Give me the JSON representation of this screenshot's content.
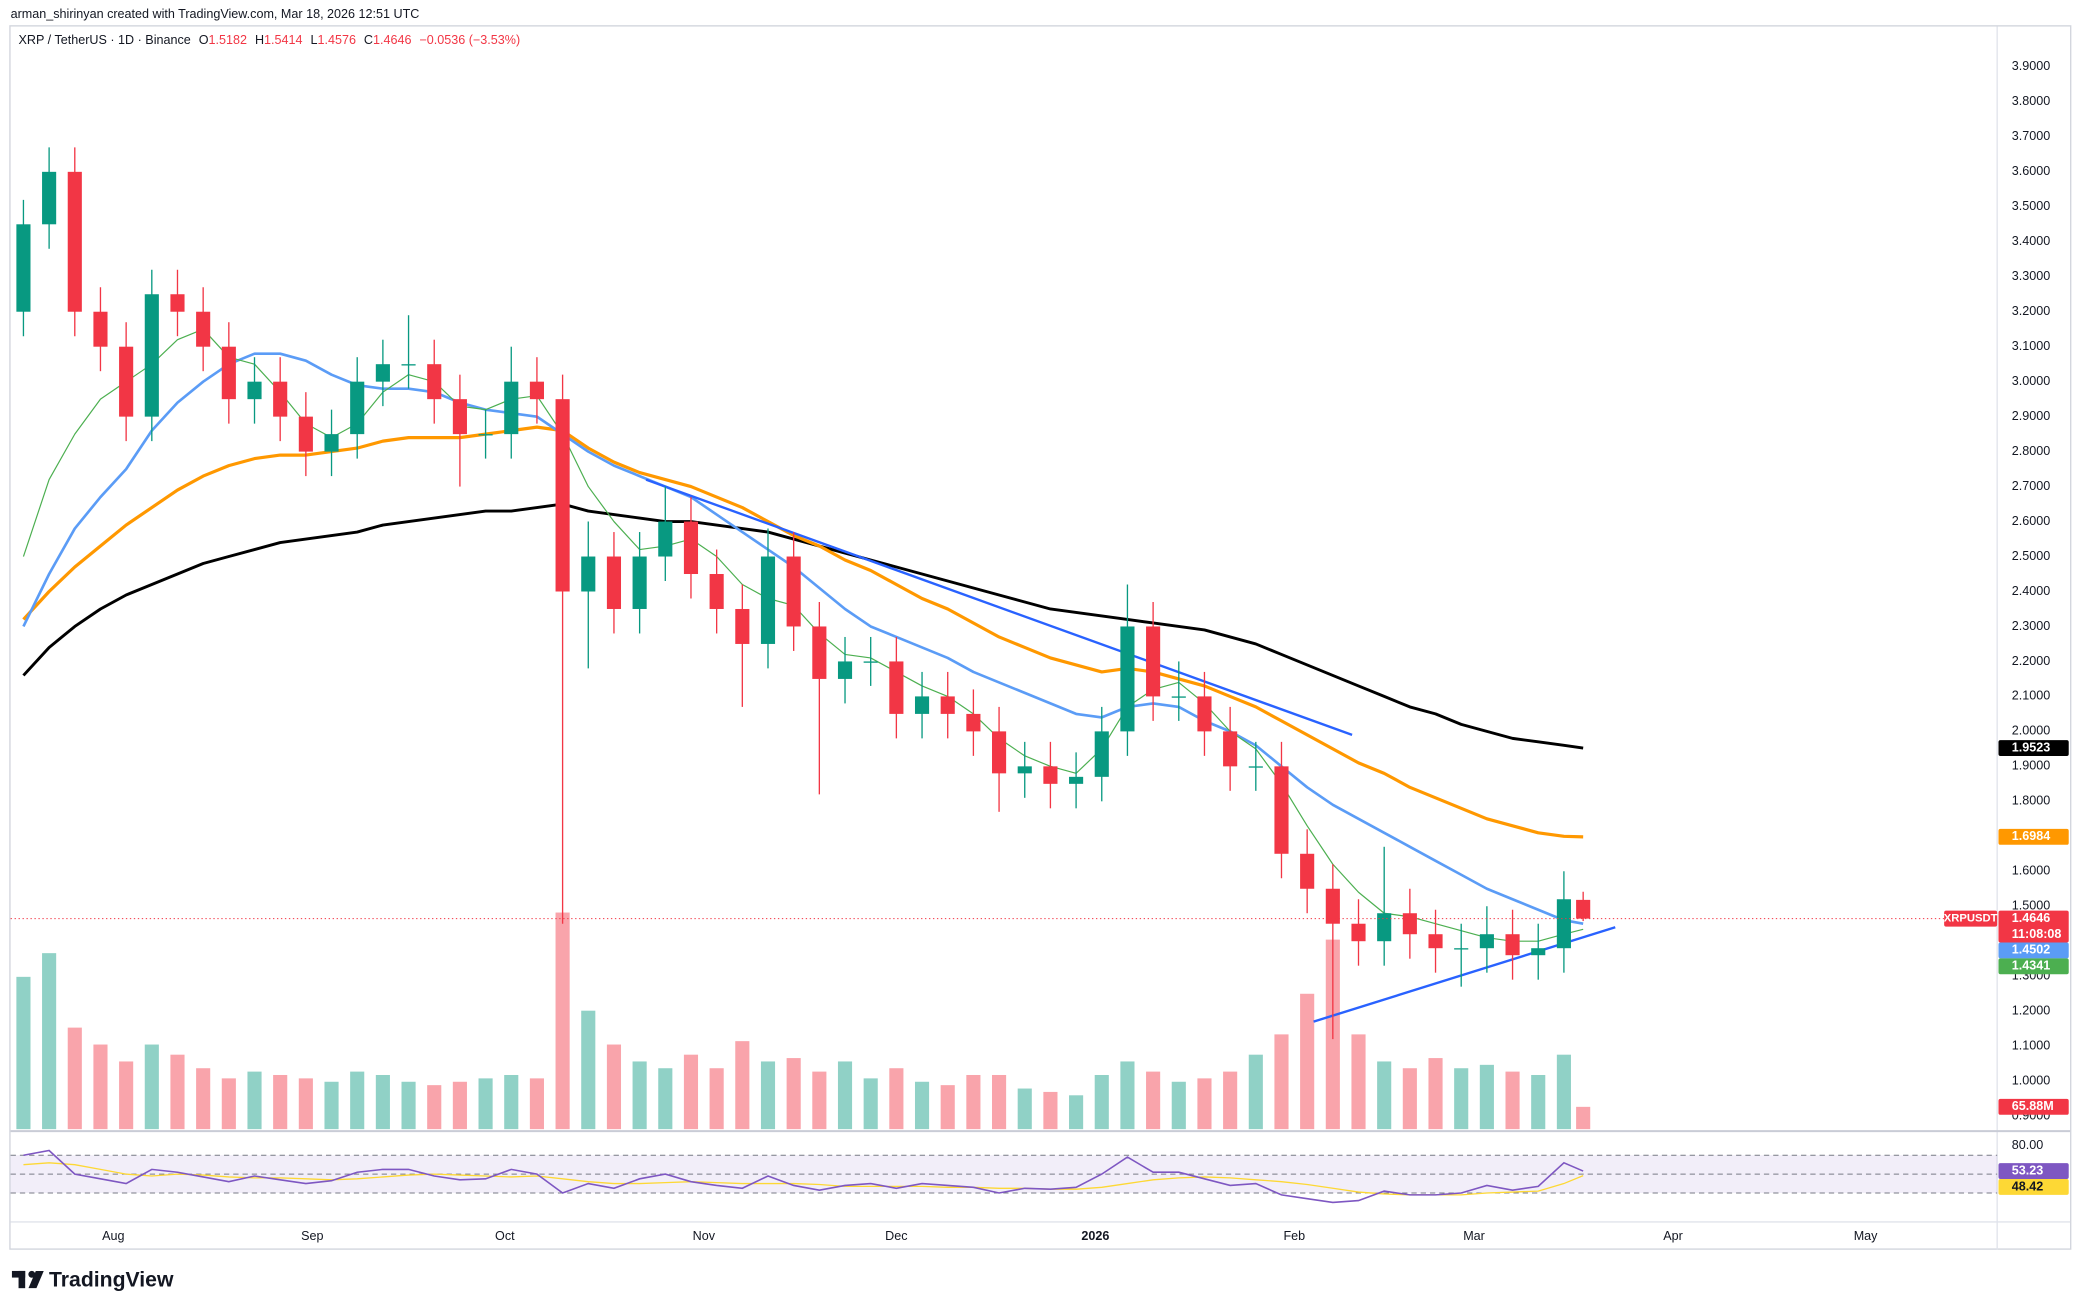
{
  "watermark": "arman_shirinyan created with TradingView.com, Mar 18, 2026 12:51 UTC",
  "footer": {
    "logo": "TradingView"
  },
  "chart_data": {
    "type": "candlestick",
    "title": "XRP / TetherUS · 1D · Binance",
    "symbol": "XRPUSDT",
    "countdown": "11:08:08",
    "ohlc_prefixes": {
      "open": "O",
      "high": "H",
      "low": "L",
      "close": "C"
    },
    "change_label": "−0.0536 (−3.53%)",
    "x": [
      0,
      4,
      8,
      12,
      16,
      20,
      24,
      28,
      32,
      36,
      40,
      44,
      48,
      52,
      56,
      60,
      64,
      68,
      72,
      76,
      80,
      84,
      88,
      92,
      96,
      100,
      104,
      108,
      112,
      116,
      120,
      124,
      128,
      132,
      136,
      140,
      144,
      148,
      152,
      156,
      160,
      164,
      168,
      172,
      176,
      180,
      184,
      188,
      192,
      196,
      200,
      204,
      208,
      212,
      216,
      220,
      224,
      228,
      232,
      236,
      240,
      243
    ],
    "open": [
      3.2,
      3.45,
      3.6,
      3.2,
      3.1,
      2.9,
      3.25,
      3.2,
      3.1,
      2.95,
      3.0,
      2.9,
      2.8,
      2.85,
      3.0,
      3.05,
      3.05,
      2.95,
      2.85,
      2.85,
      3.0,
      2.95,
      2.4,
      2.5,
      2.35,
      2.5,
      2.6,
      2.45,
      2.35,
      2.25,
      2.5,
      2.3,
      2.15,
      2.2,
      2.2,
      2.05,
      2.1,
      2.05,
      2.0,
      1.88,
      1.9,
      1.85,
      1.87,
      2.0,
      2.3,
      2.1,
      2.1,
      2.0,
      1.9,
      1.9,
      1.65,
      1.55,
      1.45,
      1.4,
      1.48,
      1.42,
      1.38,
      1.38,
      1.42,
      1.36,
      1.38,
      1.5182
    ],
    "high": [
      3.52,
      3.67,
      3.67,
      3.27,
      3.17,
      3.32,
      3.32,
      3.27,
      3.17,
      3.07,
      3.07,
      2.97,
      2.92,
      3.07,
      3.12,
      3.19,
      3.12,
      3.02,
      2.92,
      3.1,
      3.07,
      3.02,
      2.6,
      2.57,
      2.57,
      2.7,
      2.67,
      2.52,
      2.42,
      2.58,
      2.57,
      2.37,
      2.27,
      2.27,
      2.27,
      2.17,
      2.17,
      2.12,
      2.07,
      1.97,
      1.97,
      1.94,
      2.07,
      2.42,
      2.37,
      2.2,
      2.17,
      2.07,
      1.97,
      1.97,
      1.72,
      1.62,
      1.52,
      1.67,
      1.55,
      1.49,
      1.45,
      1.5,
      1.49,
      1.45,
      1.6,
      1.5414
    ],
    "low": [
      3.13,
      3.38,
      3.13,
      3.03,
      2.83,
      2.83,
      3.13,
      3.03,
      2.88,
      2.88,
      2.83,
      2.73,
      2.73,
      2.78,
      2.93,
      2.98,
      2.88,
      2.7,
      2.78,
      2.78,
      2.88,
      1.45,
      2.18,
      2.28,
      2.28,
      2.43,
      2.38,
      2.28,
      2.07,
      2.18,
      2.23,
      1.82,
      2.08,
      2.13,
      1.98,
      1.98,
      1.98,
      1.93,
      1.77,
      1.81,
      1.78,
      1.78,
      1.8,
      1.93,
      2.03,
      2.03,
      1.93,
      1.83,
      1.83,
      1.58,
      1.48,
      1.12,
      1.33,
      1.33,
      1.35,
      1.31,
      1.27,
      1.31,
      1.29,
      1.29,
      1.31,
      1.4576
    ],
    "close": [
      3.45,
      3.6,
      3.2,
      3.1,
      2.9,
      3.25,
      3.2,
      3.1,
      2.95,
      3.0,
      2.9,
      2.8,
      2.85,
      3.0,
      3.05,
      3.05,
      2.95,
      2.85,
      2.85,
      3.0,
      2.95,
      2.4,
      2.5,
      2.35,
      2.5,
      2.6,
      2.45,
      2.35,
      2.25,
      2.5,
      2.3,
      2.15,
      2.2,
      2.2,
      2.05,
      2.1,
      2.05,
      2.0,
      1.88,
      1.9,
      1.85,
      1.87,
      2.0,
      2.3,
      2.1,
      2.1,
      2.0,
      1.9,
      1.9,
      1.65,
      1.55,
      1.45,
      1.4,
      1.48,
      1.42,
      1.38,
      1.38,
      1.42,
      1.36,
      1.38,
      1.52,
      1.4646
    ],
    "up_color": "#089981",
    "down_color": "#f23645",
    "xlim": [
      -2,
      307.5
    ],
    "xticks": [
      {
        "value": 14,
        "label": "Aug"
      },
      {
        "value": 45,
        "label": "Sep"
      },
      {
        "value": 75,
        "label": "Oct"
      },
      {
        "value": 106,
        "label": "Nov"
      },
      {
        "value": 136,
        "label": "Dec"
      },
      {
        "value": 167,
        "label": "2026"
      },
      {
        "value": 198,
        "label": "Feb"
      },
      {
        "value": 226,
        "label": "Mar"
      },
      {
        "value": 257,
        "label": "Apr"
      },
      {
        "value": 287,
        "label": "May"
      }
    ],
    "ylim": [
      0.8626,
      4.0155
    ],
    "yticks": [
      {
        "value": 0.9,
        "label": "0.9000"
      },
      {
        "value": 1.0,
        "label": "1.0000"
      },
      {
        "value": 1.1,
        "label": "1.1000"
      },
      {
        "value": 1.2,
        "label": "1.2000"
      },
      {
        "value": 1.3,
        "label": "1.3000"
      },
      {
        "value": 1.4,
        "label": "1.4000"
      },
      {
        "value": 1.5,
        "label": "1.5000"
      },
      {
        "value": 1.6,
        "label": "1.6000"
      },
      {
        "value": 1.7,
        "label": "1.7000"
      },
      {
        "value": 1.8,
        "label": "1.8000"
      },
      {
        "value": 1.9,
        "label": "1.9000"
      },
      {
        "value": 2.0,
        "label": "2.0000"
      },
      {
        "value": 2.1,
        "label": "2.1000"
      },
      {
        "value": 2.2,
        "label": "2.2000"
      },
      {
        "value": 2.3,
        "label": "2.3000"
      },
      {
        "value": 2.4,
        "label": "2.4000"
      },
      {
        "value": 2.5,
        "label": "2.5000"
      },
      {
        "value": 2.6,
        "label": "2.6000"
      },
      {
        "value": 2.7,
        "label": "2.7000"
      },
      {
        "value": 2.8,
        "label": "2.8000"
      },
      {
        "value": 2.9,
        "label": "2.9000"
      },
      {
        "value": 3.0,
        "label": "3.0000"
      },
      {
        "value": 3.1,
        "label": "3.1000"
      },
      {
        "value": 3.2,
        "label": "3.2000"
      },
      {
        "value": 3.3,
        "label": "3.3000"
      },
      {
        "value": 3.4,
        "label": "3.4000"
      },
      {
        "value": 3.5,
        "label": "3.5000"
      },
      {
        "value": 3.6,
        "label": "3.6000"
      },
      {
        "value": 3.7,
        "label": "3.7000"
      },
      {
        "value": 3.8,
        "label": "3.8000"
      },
      {
        "value": 3.9,
        "label": "3.9000"
      }
    ],
    "grid": false,
    "series": [
      {
        "color": "#000000",
        "values": [
          2.16,
          2.24,
          2.3,
          2.35,
          2.39,
          2.42,
          2.45,
          2.48,
          2.5,
          2.52,
          2.54,
          2.55,
          2.56,
          2.57,
          2.59,
          2.6,
          2.61,
          2.62,
          2.63,
          2.63,
          2.64,
          2.65,
          2.63,
          2.62,
          2.61,
          2.6,
          2.6,
          2.59,
          2.58,
          2.57,
          2.55,
          2.53,
          2.51,
          2.49,
          2.47,
          2.45,
          2.43,
          2.41,
          2.39,
          2.37,
          2.35,
          2.34,
          2.33,
          2.32,
          2.31,
          2.3,
          2.29,
          2.27,
          2.25,
          2.22,
          2.19,
          2.16,
          2.13,
          2.1,
          2.07,
          2.05,
          2.02,
          2.0,
          1.98,
          1.97,
          1.96,
          1.9523
        ]
      },
      {
        "color": "#ff9800",
        "values": [
          2.32,
          2.4,
          2.47,
          2.53,
          2.59,
          2.64,
          2.69,
          2.73,
          2.76,
          2.78,
          2.79,
          2.79,
          2.8,
          2.81,
          2.83,
          2.84,
          2.84,
          2.84,
          2.85,
          2.86,
          2.87,
          2.86,
          2.81,
          2.77,
          2.74,
          2.72,
          2.7,
          2.67,
          2.64,
          2.6,
          2.56,
          2.53,
          2.49,
          2.46,
          2.42,
          2.38,
          2.35,
          2.31,
          2.27,
          2.24,
          2.21,
          2.19,
          2.17,
          2.18,
          2.17,
          2.15,
          2.13,
          2.1,
          2.07,
          2.03,
          1.99,
          1.95,
          1.91,
          1.88,
          1.84,
          1.81,
          1.78,
          1.75,
          1.73,
          1.71,
          1.7,
          1.6984
        ]
      },
      {
        "color": "#5b9cf6",
        "values": [
          2.3,
          2.45,
          2.58,
          2.67,
          2.75,
          2.86,
          2.94,
          3.0,
          3.05,
          3.08,
          3.08,
          3.06,
          3.02,
          2.99,
          2.98,
          2.98,
          2.97,
          2.94,
          2.92,
          2.91,
          2.9,
          2.85,
          2.8,
          2.76,
          2.73,
          2.7,
          2.67,
          2.62,
          2.57,
          2.52,
          2.47,
          2.41,
          2.35,
          2.3,
          2.27,
          2.24,
          2.21,
          2.17,
          2.14,
          2.11,
          2.08,
          2.05,
          2.04,
          2.07,
          2.08,
          2.07,
          2.03,
          2.0,
          1.96,
          1.9,
          1.84,
          1.79,
          1.75,
          1.71,
          1.67,
          1.63,
          1.59,
          1.55,
          1.52,
          1.49,
          1.46,
          1.4502
        ]
      },
      {
        "color": "#4caf50",
        "values": [
          2.5,
          2.72,
          2.85,
          2.95,
          3.0,
          3.05,
          3.12,
          3.15,
          3.07,
          3.05,
          2.97,
          2.88,
          2.84,
          2.88,
          2.97,
          3.02,
          3.0,
          2.93,
          2.92,
          2.95,
          2.96,
          2.85,
          2.7,
          2.6,
          2.52,
          2.53,
          2.55,
          2.5,
          2.42,
          2.38,
          2.36,
          2.28,
          2.22,
          2.21,
          2.17,
          2.13,
          2.1,
          2.05,
          1.98,
          1.93,
          1.9,
          1.88,
          1.95,
          2.07,
          2.12,
          2.14,
          2.08,
          2.0,
          1.95,
          1.85,
          1.73,
          1.62,
          1.54,
          1.48,
          1.47,
          1.45,
          1.43,
          1.41,
          1.4,
          1.4,
          1.42,
          1.4341
        ]
      }
    ],
    "volume": {
      "values": [
        450,
        520,
        300,
        250,
        200,
        250,
        220,
        180,
        150,
        170,
        160,
        150,
        140,
        170,
        160,
        140,
        130,
        140,
        150,
        160,
        150,
        640,
        350,
        250,
        200,
        180,
        220,
        180,
        260,
        200,
        210,
        170,
        200,
        150,
        180,
        140,
        130,
        160,
        160,
        120,
        110,
        100,
        160,
        200,
        170,
        140,
        150,
        170,
        220,
        280,
        400,
        560,
        280,
        200,
        180,
        210,
        180,
        190,
        170,
        160,
        220,
        65.88
      ],
      "last_label": "65.88M",
      "ylim": [
        0,
        1300
      ]
    },
    "rsi": {
      "values": [
        70,
        75,
        50,
        45,
        40,
        55,
        52,
        47,
        42,
        48,
        44,
        40,
        43,
        52,
        55,
        55,
        48,
        44,
        45,
        55,
        50,
        30,
        40,
        35,
        45,
        50,
        42,
        38,
        35,
        48,
        38,
        33,
        38,
        40,
        35,
        40,
        38,
        36,
        30,
        35,
        34,
        36,
        50,
        68,
        52,
        52,
        45,
        38,
        40,
        28,
        24,
        20,
        22,
        32,
        28,
        28,
        30,
        38,
        33,
        37,
        62,
        53.23
      ],
      "ma": [
        60,
        62,
        60,
        55,
        50,
        48,
        50,
        49,
        47,
        46,
        46,
        45,
        44,
        45,
        47,
        49,
        50,
        49,
        48,
        47,
        48,
        45,
        42,
        40,
        40,
        41,
        42,
        41,
        40,
        40,
        40,
        39,
        37,
        37,
        37,
        37,
        36,
        36,
        35,
        35,
        34,
        34,
        36,
        40,
        44,
        46,
        47,
        46,
        44,
        42,
        39,
        35,
        31,
        29,
        28,
        28,
        28,
        30,
        31,
        32,
        40,
        48.42
      ],
      "color": "#7e57c2",
      "ma_color": "#fdd835",
      "ylim": [
        5,
        92
      ],
      "yticks": [
        {
          "value": 80,
          "label": "80.00"
        }
      ],
      "levels": [
        70,
        50,
        30
      ]
    },
    "trendlines": [
      {
        "x": [
          97,
          207
        ],
        "y": [
          2.72,
          1.99
        ]
      },
      {
        "x": [
          201,
          248
        ],
        "y": [
          1.17,
          1.44
        ]
      }
    ],
    "trendline_color": "#2962ff"
  }
}
